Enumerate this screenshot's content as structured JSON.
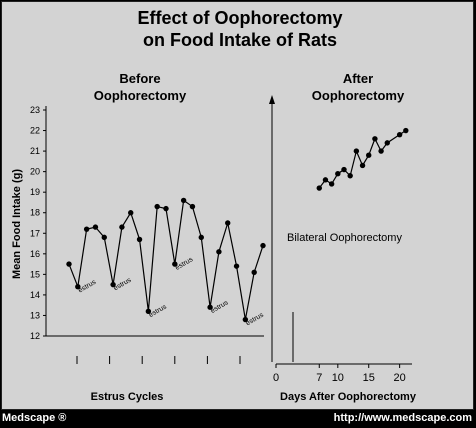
{
  "chart_data": {
    "type": "line",
    "title_lines": [
      "Effect of Oophorectomy",
      "on Food Intake of Rats"
    ],
    "left_heading": [
      "Before",
      "Oophorectomy"
    ],
    "right_heading": [
      "After",
      "Oophorectomy"
    ],
    "ylabel": "Mean Food Intake (g)",
    "ylim": [
      12,
      23
    ],
    "yticks": [
      "12",
      "13",
      "14",
      "15",
      "16",
      "17",
      "18",
      "19",
      "20",
      "21",
      "22",
      "23"
    ],
    "left_xlabel": "Estrus Cycles",
    "right_xlabel": "Days After Oophorectomy",
    "right_xticks": [
      "0",
      "7",
      "10",
      "15",
      "20"
    ],
    "right_xtick_values": [
      0,
      7,
      10,
      15,
      20
    ],
    "right_xlim": [
      0,
      22
    ],
    "annotation": "Bilateral Oophorectomy",
    "estrus_label": "estrus",
    "before_series": [
      15.5,
      14.4,
      17.2,
      17.3,
      16.8,
      14.5,
      17.3,
      18.0,
      16.7,
      13.2,
      18.3,
      18.2,
      15.5,
      18.6,
      18.3,
      16.8,
      13.4,
      16.1,
      17.5,
      15.4,
      12.8,
      15.1,
      16.4
    ],
    "before_estrus_indices": [
      1,
      5,
      9,
      12,
      16,
      20
    ],
    "before_cycle_marks": 6,
    "after_x": [
      7,
      8,
      9,
      10,
      11,
      12,
      13,
      14,
      15,
      16,
      17,
      18,
      20,
      21
    ],
    "after_y": [
      19.2,
      19.6,
      19.4,
      19.9,
      20.1,
      19.8,
      21.0,
      20.3,
      20.8,
      21.6,
      21.0,
      21.4,
      21.8,
      22.0
    ]
  },
  "footer": {
    "left": "Medscape ®",
    "right": "http://www.medscape.com"
  }
}
